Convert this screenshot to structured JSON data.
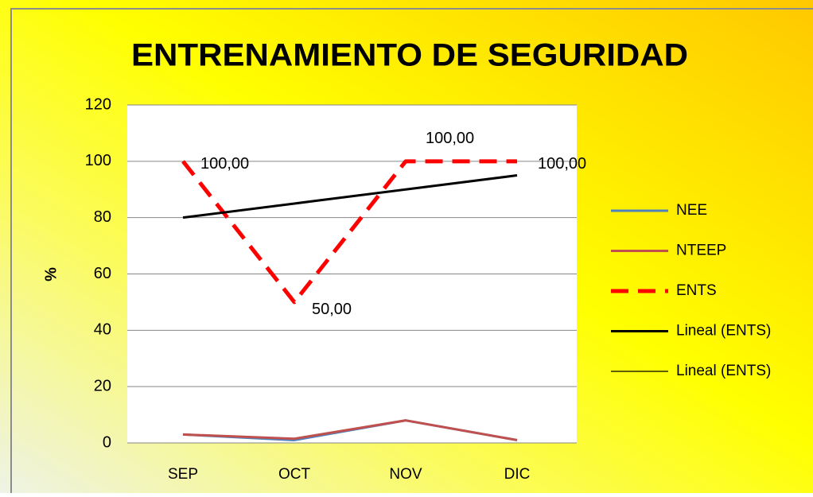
{
  "chart_data": {
    "type": "line",
    "title": "ENTRENAMIENTO DE SEGURIDAD",
    "y_label": "%",
    "categories": [
      "SEP",
      "OCT",
      "NOV",
      "DIC"
    ],
    "series": [
      {
        "name": "NEE",
        "color": "#4f81bd",
        "values": [
          3,
          1,
          8,
          1
        ]
      },
      {
        "name": "NTEEP",
        "color": "#c0504d",
        "values": [
          3,
          1.5,
          8,
          1
        ]
      },
      {
        "name": "ENTS",
        "color": "#ff0000",
        "dashed": true,
        "values": [
          100,
          50,
          100,
          100
        ],
        "value_labels": [
          "100,00",
          "50,00",
          "100,00",
          "100,00"
        ]
      },
      {
        "name": "Lineal (ENTS)",
        "color": "#000000",
        "values": [
          80,
          85,
          90,
          95
        ]
      },
      {
        "name": "Lineal (ENTS)",
        "color": "#000000",
        "values": [
          null,
          null,
          null,
          null
        ]
      }
    ],
    "ylim": [
      0,
      120
    ],
    "yticks": [
      0,
      20,
      40,
      60,
      80,
      100,
      120
    ],
    "grid": true,
    "legend": "right"
  }
}
